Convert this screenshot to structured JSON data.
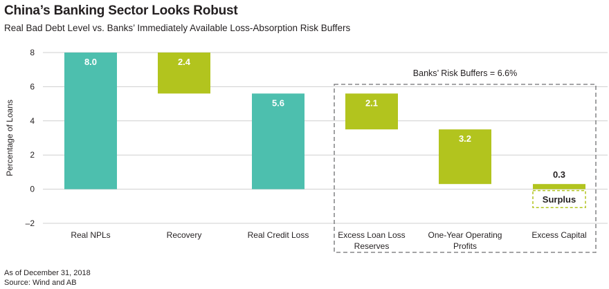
{
  "chart_data": {
    "type": "bar",
    "title": "China’s Banking Sector Looks Robust",
    "subtitle": "Real Bad Debt Level vs. Banks’ Immediately Available Loss-Absorption Risk Buffers",
    "ylabel": "Percentage of Loans",
    "ylim": [
      -2,
      8
    ],
    "yticks": [
      -2,
      0,
      2,
      4,
      6,
      8
    ],
    "ytick_labels": [
      "–2",
      "0",
      "2",
      "4",
      "6",
      "8"
    ],
    "categories": [
      "Real NPLs",
      "Recovery",
      "Real Credit Loss",
      "Excess Loan Loss Reserves",
      "One-Year Operating Profits",
      "Excess Capital"
    ],
    "category_lines": [
      [
        "Real NPLs"
      ],
      [
        "Recovery"
      ],
      [
        "Real Credit Loss"
      ],
      [
        "Excess Loan Loss",
        "Reserves"
      ],
      [
        "One-Year Operating",
        "Profits"
      ],
      [
        "Excess Capital"
      ]
    ],
    "bars": [
      {
        "start": 0,
        "end": 8.0,
        "label": "8.0",
        "color": "#4dbfae"
      },
      {
        "start": 5.6,
        "end": 8.0,
        "label": "2.4",
        "color": "#b2c41e"
      },
      {
        "start": 0,
        "end": 5.6,
        "label": "5.6",
        "color": "#4dbfae"
      },
      {
        "start": 3.5,
        "end": 5.6,
        "label": "2.1",
        "color": "#b2c41e"
      },
      {
        "start": 0.3,
        "end": 3.5,
        "label": "3.2",
        "color": "#b2c41e"
      },
      {
        "start": 0,
        "end": 0.3,
        "label": "0.3",
        "color": "#b2c41e"
      }
    ],
    "surplus": {
      "label": "Surplus",
      "start": -1.0,
      "end": 0,
      "color": "#b2c41e"
    },
    "annotation": "Banks’ Risk Buffers = 6.6%",
    "colors": {
      "teal": "#4dbfae",
      "green": "#b2c41e",
      "axis": "#cfcfcf",
      "text": "#231f20"
    }
  },
  "footnote": {
    "as_of": "As of December 31, 2018",
    "source": "Source: Wind and AB"
  }
}
